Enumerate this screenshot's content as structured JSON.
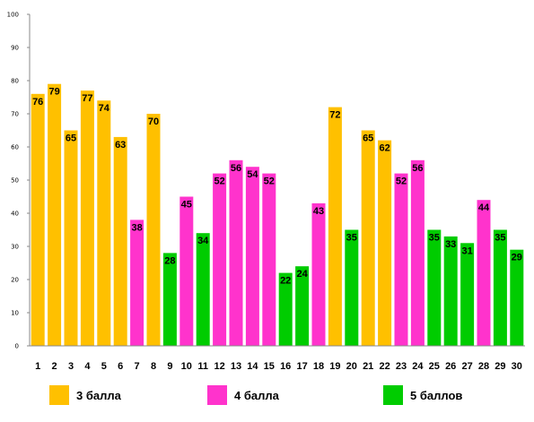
{
  "chart_data": {
    "type": "bar",
    "categories": [
      "1",
      "2",
      "3",
      "4",
      "5",
      "6",
      "7",
      "8",
      "9",
      "10",
      "11",
      "12",
      "13",
      "14",
      "15",
      "16",
      "17",
      "18",
      "19",
      "20",
      "21",
      "22",
      "23",
      "24",
      "25",
      "26",
      "27",
      "28",
      "29",
      "30"
    ],
    "values": [
      76,
      79,
      65,
      77,
      74,
      63,
      38,
      70,
      28,
      45,
      34,
      52,
      56,
      54,
      52,
      22,
      24,
      43,
      72,
      35,
      65,
      62,
      52,
      56,
      35,
      33,
      31,
      44,
      35,
      29
    ],
    "groups": [
      "3",
      "3",
      "3",
      "3",
      "3",
      "3",
      "4",
      "3",
      "5",
      "4",
      "5",
      "4",
      "4",
      "4",
      "4",
      "5",
      "5",
      "4",
      "3",
      "5",
      "3",
      "3",
      "4",
      "4",
      "5",
      "5",
      "5",
      "4",
      "5",
      "5"
    ],
    "ylim": [
      0,
      100
    ],
    "yticks": [
      "0",
      "10",
      "20",
      "30",
      "40",
      "50",
      "60",
      "70",
      "80",
      "90",
      "100"
    ],
    "grid": false,
    "legend_position": "bottom",
    "legend": [
      {
        "key": "3",
        "label": "3 балла",
        "color": "#FFC000"
      },
      {
        "key": "4",
        "label": "4 балла",
        "color": "#FF33CC"
      },
      {
        "key": "5",
        "label": "5 баллов",
        "color": "#00CC00"
      }
    ],
    "title": "",
    "xlabel": "",
    "ylabel": ""
  }
}
